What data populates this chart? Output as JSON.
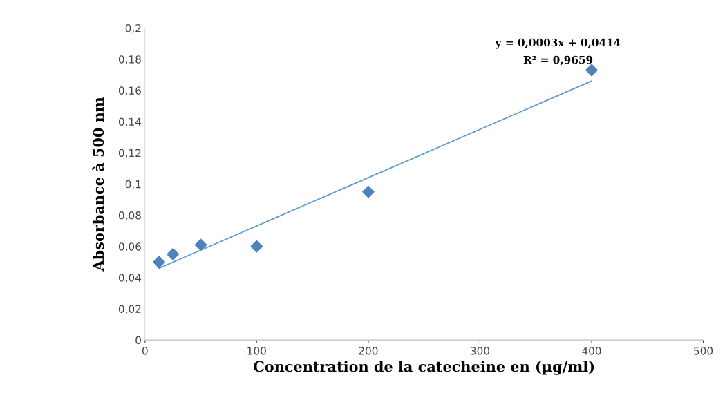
{
  "chart_data": {
    "type": "scatter",
    "xlabel": "Concentration de la catecheine en (µg/ml)",
    "ylabel": "Absorbance à 500 nm",
    "series": [
      {
        "color": "#4f81bd",
        "marker": "diamond",
        "x": [
          12.5,
          25,
          50,
          100,
          200,
          400
        ],
        "values": [
          0.05,
          0.055,
          0.061,
          0.06,
          0.095,
          0.173
        ]
      },
      {
        "type": "line",
        "color": "#5b9bd5",
        "marker": "none",
        "x": [
          12.5,
          400
        ],
        "values": [
          0.046,
          0.166
        ]
      }
    ],
    "annotations": [
      "y = 0,0003x + 0,0414",
      "R² = 0,9659"
    ],
    "xlim": [
      0,
      500
    ],
    "xticks": [
      0,
      100,
      200,
      300,
      400,
      500
    ],
    "ylim": [
      0,
      0.2
    ],
    "yticks": [
      0,
      {
        "value": 0.02,
        "label": "0,02"
      },
      {
        "value": 0.04,
        "label": "0,04"
      },
      {
        "value": 0.06,
        "label": "0,06"
      },
      {
        "value": 0.08,
        "label": "0,08"
      },
      {
        "value": 0.1,
        "label": "0,1"
      },
      {
        "value": 0.12,
        "label": "0,12"
      },
      {
        "value": 0.14,
        "label": "0,14"
      },
      {
        "value": 0.16,
        "label": "0,16"
      },
      {
        "value": 0.18,
        "label": "0,18"
      },
      {
        "value": 0.2,
        "label": "0,2"
      }
    ],
    "grid": false,
    "legend": false
  }
}
